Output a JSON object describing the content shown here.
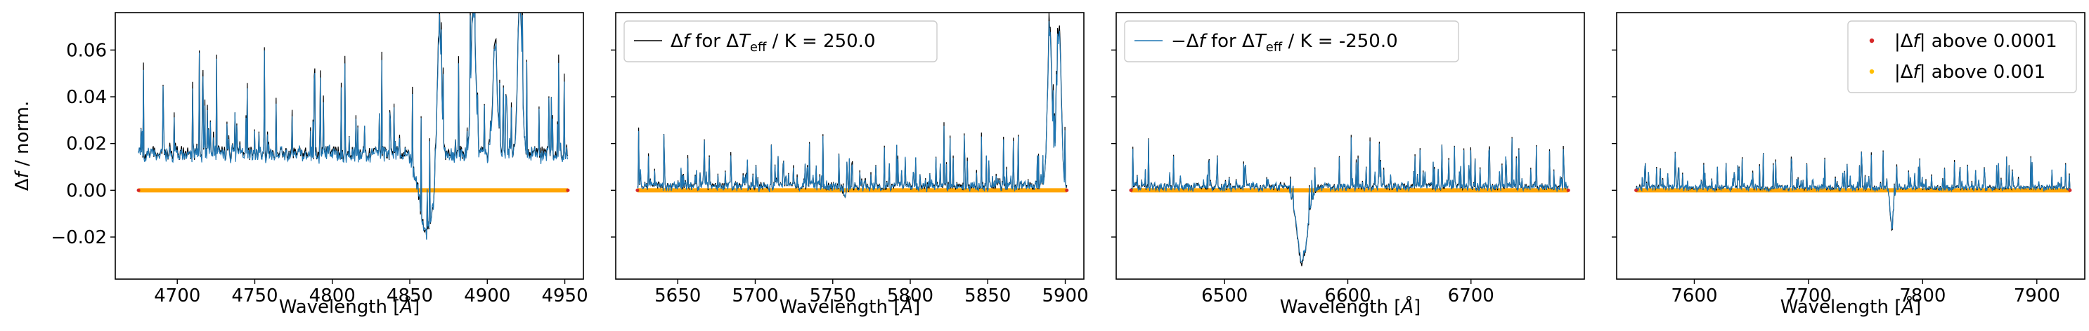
{
  "chart_data": [
    {
      "type": "line",
      "xlabel": "Wavelength [Å]",
      "ylabel": "Δf / norm.",
      "xlim": [
        4660,
        4962
      ],
      "ylim": [
        -0.038,
        0.076
      ],
      "xticks": [
        4700,
        4750,
        4800,
        4850,
        4900,
        4950
      ],
      "yticks": [
        -0.02,
        0.0,
        0.02,
        0.04,
        0.06
      ],
      "yticklabels": [
        "−0.02",
        "0.00",
        "0.02",
        "0.04",
        "0.06"
      ],
      "show_yticklabels": true,
      "x_range": [
        4675,
        4952
      ],
      "features": [
        [
          4861,
          -0.034,
          7
        ],
        [
          4891,
          0.072,
          2
        ],
        [
          4921,
          0.075,
          2
        ],
        [
          4869,
          0.07,
          2
        ],
        [
          4905,
          0.052,
          2
        ]
      ],
      "baseline": 0.0,
      "noise": 0.02,
      "legend": null
    },
    {
      "type": "line",
      "xlabel": "Wavelength [Å]",
      "ylim": [
        -0.038,
        0.076
      ],
      "xlim": [
        5610,
        5912
      ],
      "xticks": [
        5650,
        5700,
        5750,
        5800,
        5850,
        5900
      ],
      "yticks": [
        -0.02,
        0.0,
        0.02,
        0.04,
        0.06
      ],
      "show_yticklabels": false,
      "x_range": [
        5624,
        5901
      ],
      "features": [
        [
          5890,
          0.076,
          2
        ],
        [
          5896,
          0.076,
          2
        ],
        [
          5758,
          -0.004,
          2
        ]
      ],
      "baseline": 0.0,
      "noise": 0.012,
      "legend": {
        "position": "upper-left",
        "entries": [
          {
            "text": "Δf for ΔT_eff / K = 250.0",
            "color": "#000000"
          }
        ]
      }
    },
    {
      "type": "line",
      "xlabel": "Wavelength [Å]",
      "ylim": [
        -0.038,
        0.076
      ],
      "xlim": [
        6412,
        6792
      ],
      "xticks": [
        6500,
        6600,
        6700
      ],
      "yticks": [
        -0.02,
        0.0,
        0.02,
        0.04,
        0.06
      ],
      "show_yticklabels": false,
      "x_range": [
        6424,
        6779
      ],
      "features": [
        [
          6563,
          -0.033,
          6
        ]
      ],
      "baseline": 0.0,
      "noise": 0.01,
      "legend": {
        "position": "upper-left",
        "entries": [
          {
            "text": "−Δf for ΔT_eff / K = -250.0",
            "color": "#1f77b4"
          }
        ]
      }
    },
    {
      "type": "scatter",
      "xlabel": "Wavelength [Å]",
      "ylim": [
        -0.038,
        0.076
      ],
      "xlim": [
        7532,
        7942
      ],
      "xticks": [
        7600,
        7700,
        7800,
        7900
      ],
      "yticks": [
        -0.02,
        0.0,
        0.02,
        0.04,
        0.06
      ],
      "show_yticklabels": false,
      "x_range": [
        7549,
        7929
      ],
      "features": [
        [
          7773,
          -0.018,
          2
        ]
      ],
      "baseline": 0.0,
      "noise": 0.007,
      "legend": {
        "position": "upper-right",
        "entries": [
          {
            "text": "|Δf| above 0.0001",
            "color": "#d62728"
          },
          {
            "text": "|Δf| above 0.001",
            "color": "#ffbf00"
          }
        ]
      }
    }
  ],
  "colors": {
    "positive_line": "#000000",
    "negative_line": "#1f77b4",
    "above_0001": "#d62728",
    "above_001": "#ffbf00",
    "mask_band": "#ffa500"
  }
}
